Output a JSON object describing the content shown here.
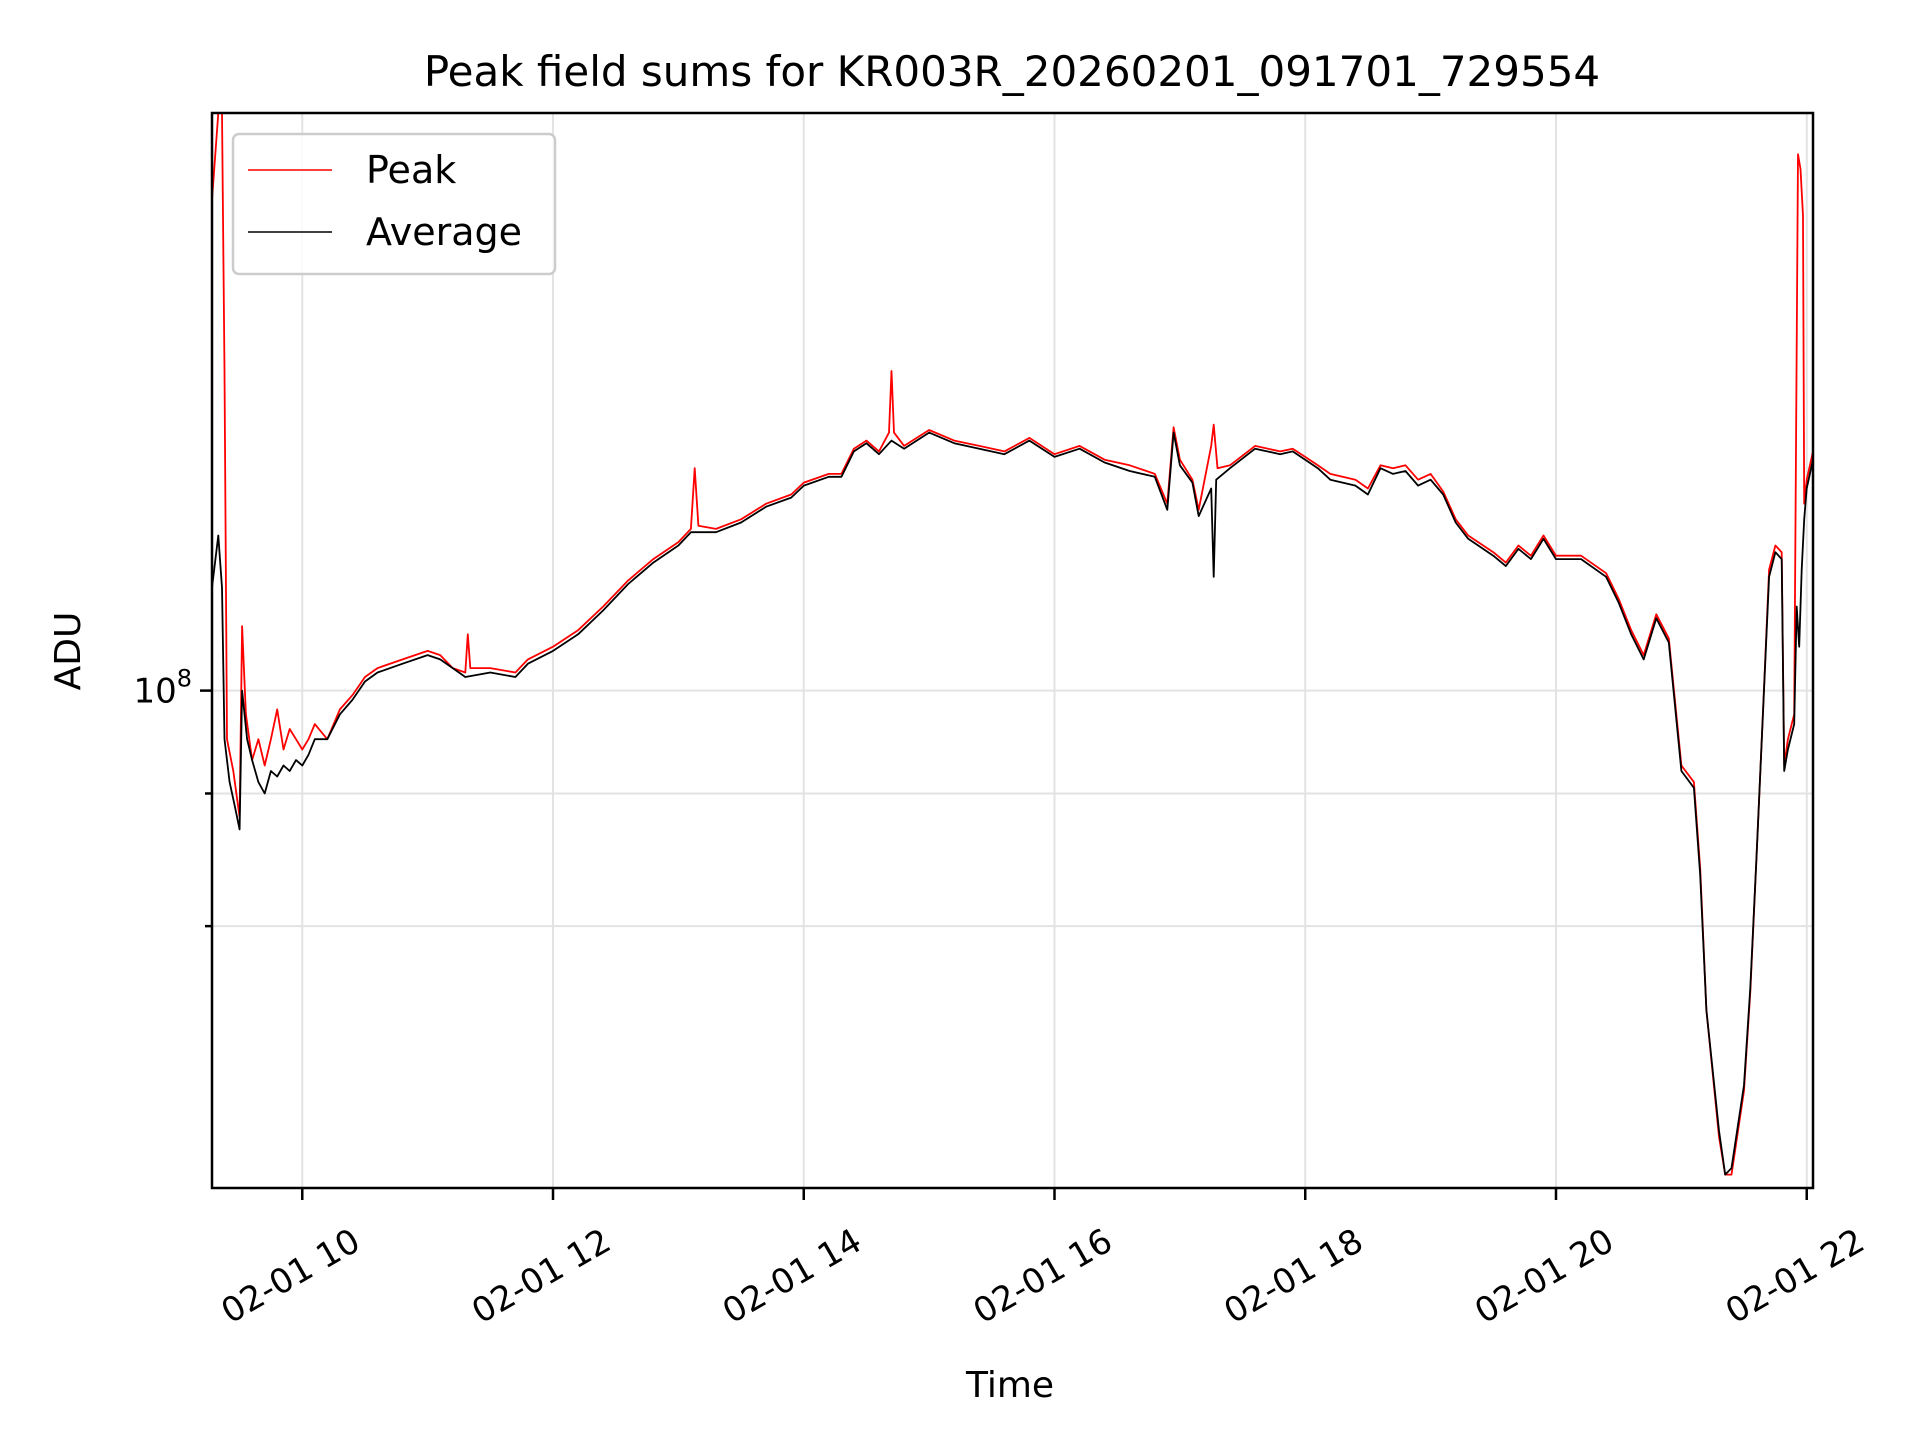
{
  "chart_data": {
    "type": "line",
    "title": "Peak field sums for KR003R_20260201_091701_729554",
    "xlabel": "Time",
    "ylabel": "ADU",
    "y_scale": "log",
    "grid": true,
    "legend_position": "top-left",
    "xlim": [
      9.28,
      22.05
    ],
    "ylim": [
      34000000,
      350000000
    ],
    "x_ticks": [
      10,
      12,
      14,
      16,
      18,
      20,
      22
    ],
    "x_tick_labels": [
      "02-01 10",
      "02-01 12",
      "02-01 14",
      "02-01 16",
      "02-01 18",
      "02-01 20",
      "02-01 22"
    ],
    "y_major_ticks": [
      100000000
    ],
    "y_major_tick_labels": [
      {
        "base": "10",
        "exp": "8"
      }
    ],
    "y_minor_ticks": [
      60000000,
      80000000
    ],
    "series": [
      {
        "name": "Peak",
        "color": "#ff0000",
        "points": [
          [
            9.28,
            290000000
          ],
          [
            9.33,
            350000000
          ],
          [
            9.36,
            350000000
          ],
          [
            9.38,
            200000000
          ],
          [
            9.4,
            90000000
          ],
          [
            9.45,
            84000000
          ],
          [
            9.5,
            76000000
          ],
          [
            9.52,
            115000000
          ],
          [
            9.55,
            95000000
          ],
          [
            9.6,
            86000000
          ],
          [
            9.65,
            90000000
          ],
          [
            9.7,
            85000000
          ],
          [
            9.75,
            90000000
          ],
          [
            9.8,
            96000000
          ],
          [
            9.85,
            88000000
          ],
          [
            9.9,
            92000000
          ],
          [
            9.95,
            90000000
          ],
          [
            10.0,
            88000000
          ],
          [
            10.05,
            90000000
          ],
          [
            10.1,
            93000000
          ],
          [
            10.2,
            90000000
          ],
          [
            10.3,
            96000000
          ],
          [
            10.4,
            99000000
          ],
          [
            10.5,
            103000000
          ],
          [
            10.6,
            105000000
          ],
          [
            10.8,
            107000000
          ],
          [
            11.0,
            109000000
          ],
          [
            11.1,
            108000000
          ],
          [
            11.2,
            105000000
          ],
          [
            11.3,
            104000000
          ],
          [
            11.32,
            113000000
          ],
          [
            11.34,
            105000000
          ],
          [
            11.5,
            105000000
          ],
          [
            11.7,
            104000000
          ],
          [
            11.8,
            107000000
          ],
          [
            12.0,
            110000000
          ],
          [
            12.2,
            114000000
          ],
          [
            12.4,
            120000000
          ],
          [
            12.6,
            127000000
          ],
          [
            12.8,
            133000000
          ],
          [
            13.0,
            138000000
          ],
          [
            13.1,
            142000000
          ],
          [
            13.13,
            162000000
          ],
          [
            13.16,
            143000000
          ],
          [
            13.3,
            142000000
          ],
          [
            13.5,
            145000000
          ],
          [
            13.7,
            150000000
          ],
          [
            13.9,
            153000000
          ],
          [
            14.0,
            157000000
          ],
          [
            14.2,
            160000000
          ],
          [
            14.3,
            160000000
          ],
          [
            14.4,
            169000000
          ],
          [
            14.5,
            172000000
          ],
          [
            14.6,
            168000000
          ],
          [
            14.68,
            175000000
          ],
          [
            14.7,
            200000000
          ],
          [
            14.72,
            175000000
          ],
          [
            14.8,
            170000000
          ],
          [
            15.0,
            176000000
          ],
          [
            15.2,
            172000000
          ],
          [
            15.4,
            170000000
          ],
          [
            15.6,
            168000000
          ],
          [
            15.8,
            173000000
          ],
          [
            16.0,
            167000000
          ],
          [
            16.2,
            170000000
          ],
          [
            16.4,
            165000000
          ],
          [
            16.6,
            163000000
          ],
          [
            16.8,
            160000000
          ],
          [
            16.9,
            150000000
          ],
          [
            16.95,
            177000000
          ],
          [
            17.0,
            165000000
          ],
          [
            17.1,
            158000000
          ],
          [
            17.15,
            148000000
          ],
          [
            17.25,
            170000000
          ],
          [
            17.27,
            178000000
          ],
          [
            17.3,
            162000000
          ],
          [
            17.4,
            163000000
          ],
          [
            17.6,
            170000000
          ],
          [
            17.8,
            168000000
          ],
          [
            17.9,
            169000000
          ],
          [
            18.0,
            166000000
          ],
          [
            18.1,
            163000000
          ],
          [
            18.2,
            160000000
          ],
          [
            18.4,
            158000000
          ],
          [
            18.5,
            155000000
          ],
          [
            18.6,
            163000000
          ],
          [
            18.7,
            162000000
          ],
          [
            18.8,
            163000000
          ],
          [
            18.9,
            158000000
          ],
          [
            19.0,
            160000000
          ],
          [
            19.1,
            154000000
          ],
          [
            19.2,
            145000000
          ],
          [
            19.3,
            140000000
          ],
          [
            19.5,
            135000000
          ],
          [
            19.6,
            132000000
          ],
          [
            19.7,
            137000000
          ],
          [
            19.8,
            134000000
          ],
          [
            19.9,
            140000000
          ],
          [
            20.0,
            134000000
          ],
          [
            20.2,
            134000000
          ],
          [
            20.4,
            129000000
          ],
          [
            20.5,
            122000000
          ],
          [
            20.6,
            114000000
          ],
          [
            20.7,
            108000000
          ],
          [
            20.8,
            118000000
          ],
          [
            20.9,
            112000000
          ],
          [
            21.0,
            85000000
          ],
          [
            21.1,
            82000000
          ],
          [
            21.15,
            68000000
          ],
          [
            21.2,
            50000000
          ],
          [
            21.3,
            38000000
          ],
          [
            21.35,
            35000000
          ],
          [
            21.4,
            35000000
          ],
          [
            21.5,
            42000000
          ],
          [
            21.55,
            52000000
          ],
          [
            21.6,
            70000000
          ],
          [
            21.65,
            95000000
          ],
          [
            21.7,
            130000000
          ],
          [
            21.75,
            137000000
          ],
          [
            21.8,
            135000000
          ],
          [
            21.82,
            85000000
          ],
          [
            21.85,
            90000000
          ],
          [
            21.9,
            95000000
          ],
          [
            21.93,
            320000000
          ],
          [
            21.95,
            310000000
          ],
          [
            21.97,
            280000000
          ],
          [
            21.98,
            150000000
          ],
          [
            22.0,
            158000000
          ],
          [
            22.05,
            168000000
          ]
        ]
      },
      {
        "name": "Average",
        "color": "#000000",
        "points": [
          [
            9.28,
            125000000
          ],
          [
            9.33,
            140000000
          ],
          [
            9.36,
            125000000
          ],
          [
            9.38,
            90000000
          ],
          [
            9.42,
            82000000
          ],
          [
            9.46,
            78000000
          ],
          [
            9.5,
            74000000
          ],
          [
            9.52,
            100000000
          ],
          [
            9.56,
            90000000
          ],
          [
            9.6,
            86000000
          ],
          [
            9.65,
            82000000
          ],
          [
            9.7,
            80000000
          ],
          [
            9.75,
            84000000
          ],
          [
            9.8,
            83000000
          ],
          [
            9.85,
            85000000
          ],
          [
            9.9,
            84000000
          ],
          [
            9.95,
            86000000
          ],
          [
            10.0,
            85000000
          ],
          [
            10.05,
            87000000
          ],
          [
            10.1,
            90000000
          ],
          [
            10.2,
            90000000
          ],
          [
            10.3,
            95000000
          ],
          [
            10.4,
            98000000
          ],
          [
            10.5,
            102000000
          ],
          [
            10.6,
            104000000
          ],
          [
            10.8,
            106000000
          ],
          [
            11.0,
            108000000
          ],
          [
            11.1,
            107000000
          ],
          [
            11.2,
            105000000
          ],
          [
            11.3,
            103000000
          ],
          [
            11.5,
            104000000
          ],
          [
            11.7,
            103000000
          ],
          [
            11.8,
            106000000
          ],
          [
            12.0,
            109000000
          ],
          [
            12.2,
            113000000
          ],
          [
            12.4,
            119000000
          ],
          [
            12.6,
            126000000
          ],
          [
            12.8,
            132000000
          ],
          [
            13.0,
            137000000
          ],
          [
            13.1,
            141000000
          ],
          [
            13.3,
            141000000
          ],
          [
            13.5,
            144000000
          ],
          [
            13.7,
            149000000
          ],
          [
            13.9,
            152000000
          ],
          [
            14.0,
            156000000
          ],
          [
            14.2,
            159000000
          ],
          [
            14.3,
            159000000
          ],
          [
            14.4,
            168000000
          ],
          [
            14.5,
            171000000
          ],
          [
            14.6,
            167000000
          ],
          [
            14.7,
            172000000
          ],
          [
            14.8,
            169000000
          ],
          [
            15.0,
            175000000
          ],
          [
            15.2,
            171000000
          ],
          [
            15.4,
            169000000
          ],
          [
            15.6,
            167000000
          ],
          [
            15.8,
            172000000
          ],
          [
            16.0,
            166000000
          ],
          [
            16.2,
            169000000
          ],
          [
            16.4,
            164000000
          ],
          [
            16.6,
            161000000
          ],
          [
            16.8,
            159000000
          ],
          [
            16.9,
            148000000
          ],
          [
            16.95,
            175000000
          ],
          [
            17.0,
            163000000
          ],
          [
            17.1,
            157000000
          ],
          [
            17.15,
            146000000
          ],
          [
            17.25,
            155000000
          ],
          [
            17.27,
            128000000
          ],
          [
            17.29,
            158000000
          ],
          [
            17.4,
            162000000
          ],
          [
            17.6,
            169000000
          ],
          [
            17.8,
            167000000
          ],
          [
            17.9,
            168000000
          ],
          [
            18.0,
            165000000
          ],
          [
            18.1,
            162000000
          ],
          [
            18.2,
            158000000
          ],
          [
            18.4,
            156000000
          ],
          [
            18.5,
            153000000
          ],
          [
            18.6,
            162000000
          ],
          [
            18.7,
            160000000
          ],
          [
            18.8,
            161000000
          ],
          [
            18.9,
            156000000
          ],
          [
            19.0,
            158000000
          ],
          [
            19.1,
            153000000
          ],
          [
            19.2,
            144000000
          ],
          [
            19.3,
            139000000
          ],
          [
            19.5,
            134000000
          ],
          [
            19.6,
            131000000
          ],
          [
            19.7,
            136000000
          ],
          [
            19.8,
            133000000
          ],
          [
            19.9,
            139000000
          ],
          [
            20.0,
            133000000
          ],
          [
            20.2,
            133000000
          ],
          [
            20.4,
            128000000
          ],
          [
            20.5,
            121000000
          ],
          [
            20.6,
            113000000
          ],
          [
            20.7,
            107000000
          ],
          [
            20.8,
            117000000
          ],
          [
            20.9,
            111000000
          ],
          [
            21.0,
            84000000
          ],
          [
            21.1,
            81000000
          ],
          [
            21.15,
            67000000
          ],
          [
            21.2,
            50000000
          ],
          [
            21.3,
            38500000
          ],
          [
            21.35,
            35000000
          ],
          [
            21.4,
            35500000
          ],
          [
            21.5,
            42500000
          ],
          [
            21.55,
            52500000
          ],
          [
            21.6,
            70000000
          ],
          [
            21.65,
            95000000
          ],
          [
            21.7,
            128000000
          ],
          [
            21.75,
            135000000
          ],
          [
            21.8,
            133000000
          ],
          [
            21.82,
            84000000
          ],
          [
            21.85,
            88000000
          ],
          [
            21.9,
            93000000
          ],
          [
            21.92,
            120000000
          ],
          [
            21.94,
            110000000
          ],
          [
            21.96,
            130000000
          ],
          [
            21.98,
            145000000
          ],
          [
            22.0,
            155000000
          ],
          [
            22.05,
            165000000
          ]
        ]
      }
    ]
  }
}
